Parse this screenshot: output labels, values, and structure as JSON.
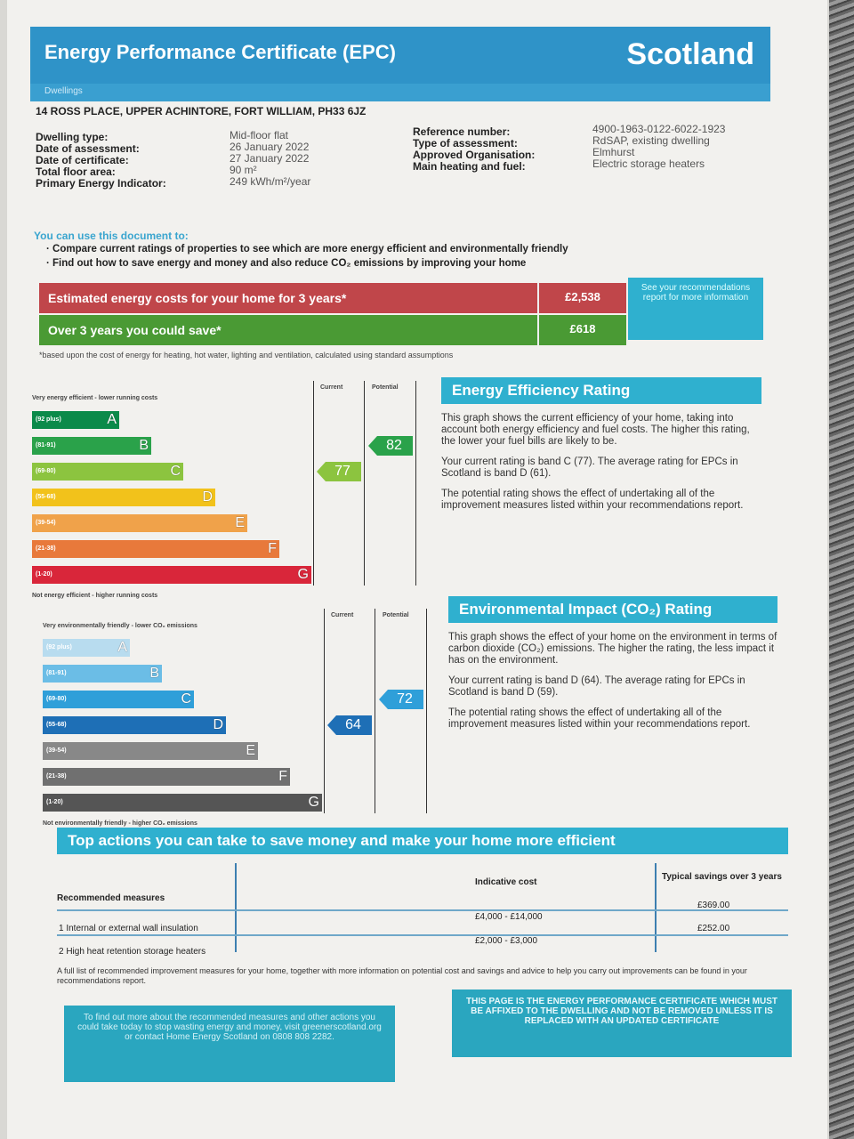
{
  "header": {
    "title": "Energy Performance Certificate (EPC)",
    "region": "Scotland",
    "subtitle": "Dwellings"
  },
  "address": "14 ROSS PLACE, UPPER ACHINTORE, FORT WILLIAM, PH33 6JZ",
  "details_left": [
    {
      "label": "Dwelling type:",
      "value": "Mid-floor flat"
    },
    {
      "label": "Date of assessment:",
      "value": "26 January 2022"
    },
    {
      "label": "Date of certificate:",
      "value": "27 January 2022"
    },
    {
      "label": "Total floor area:",
      "value": "90 m²"
    },
    {
      "label": "Primary Energy Indicator:",
      "value": "249 kWh/m²/year"
    }
  ],
  "details_right": [
    {
      "label": "Reference number:",
      "value": "4900-1963-0122-6022-1923"
    },
    {
      "label": "Type of assessment:",
      "value": "RdSAP, existing dwelling"
    },
    {
      "label": "Approved Organisation:",
      "value": "Elmhurst"
    },
    {
      "label": "Main heating and fuel:",
      "value": "Electric storage heaters"
    }
  ],
  "use_heading": "You can use this document to:",
  "use_bullets": [
    "Compare current ratings of properties to see which are more energy efficient and environmentally friendly",
    "Find out how to save energy and money and also reduce CO₂ emissions by improving your home"
  ],
  "costs": {
    "estimated_label": "Estimated energy costs for your home for 3 years*",
    "estimated_value": "£2,538",
    "save_label": "Over 3 years you could save*",
    "save_value": "£618",
    "see_rec": "See your recommendations report for more information",
    "footnote": "*based upon the cost of energy for heating, hot water, lighting and ventilation, calculated using standard assumptions"
  },
  "energy": {
    "top_note": "Very energy efficient - lower running costs",
    "bottom_note": "Not energy efficient - higher running costs",
    "col_current": "Current",
    "col_potential": "Potential",
    "current": 77,
    "potential": 82,
    "current_color": "#8cc43f",
    "potential_color": "#2aa24a",
    "bands": [
      {
        "letter": "A",
        "range": "(92 plus)",
        "color": "#0b8a4a"
      },
      {
        "letter": "B",
        "range": "(81-91)",
        "color": "#2aa24a"
      },
      {
        "letter": "C",
        "range": "(69-80)",
        "color": "#8cc43f"
      },
      {
        "letter": "D",
        "range": "(55-68)",
        "color": "#f2c21b"
      },
      {
        "letter": "E",
        "range": "(39-54)",
        "color": "#f0a24a"
      },
      {
        "letter": "F",
        "range": "(21-38)",
        "color": "#e8793b"
      },
      {
        "letter": "G",
        "range": "(1-20)",
        "color": "#d9263a"
      }
    ],
    "title": "Energy Efficiency Rating",
    "p1": "This graph shows the current efficiency of your home, taking into account both energy efficiency and fuel costs. The higher this rating, the lower your fuel bills are likely to be.",
    "p2": "Your current rating is band C (77). The average rating for EPCs in Scotland is band D (61).",
    "p3": "The potential rating shows the effect of undertaking all of the improvement measures listed within your recommendations report."
  },
  "environment": {
    "top_note": "Very environmentally friendly - lower CO₂ emissions",
    "bottom_note": "Not environmentally friendly - higher CO₂ emissions",
    "col_current": "Current",
    "col_potential": "Potential",
    "current": 64,
    "potential": 72,
    "current_color": "#1e6fb6",
    "potential_color": "#2f9fd9",
    "bands": [
      {
        "letter": "A",
        "range": "(92 plus)",
        "color": "#b8dcef"
      },
      {
        "letter": "B",
        "range": "(81-91)",
        "color": "#6bbde6"
      },
      {
        "letter": "C",
        "range": "(69-80)",
        "color": "#2f9fd9"
      },
      {
        "letter": "D",
        "range": "(55-68)",
        "color": "#1e6fb6"
      },
      {
        "letter": "E",
        "range": "(39-54)",
        "color": "#888888"
      },
      {
        "letter": "F",
        "range": "(21-38)",
        "color": "#707070"
      },
      {
        "letter": "G",
        "range": "(1-20)",
        "color": "#555555"
      }
    ],
    "title": "Environmental Impact (CO₂) Rating",
    "p1": "This graph shows the effect of your home on the environment in terms of carbon dioxide (CO₂) emissions. The higher the rating, the less impact it has on the environment.",
    "p2": "Your current rating is band D (64). The average rating for EPCs in Scotland is band D (59).",
    "p3": "The potential rating shows the effect of undertaking all of the improvement measures listed within your recommendations report."
  },
  "actions": {
    "title": "Top actions you can take to save money and make your home more efficient",
    "col_measures": "Recommended measures",
    "col_cost": "Indicative cost",
    "col_savings": "Typical savings over 3 years",
    "rows": [
      {
        "measure": "1 Internal or external wall insulation",
        "cost": "£4,000 - £14,000",
        "savings": "£369.00"
      },
      {
        "measure": "2 High heat retention storage heaters",
        "cost": "£2,000 - £3,000",
        "savings": "£252.00"
      }
    ],
    "note": "A full list of recommended improvement measures for your home, together with more information on potential cost and savings and advice to help you carry out improvements can be found in your recommendations report.",
    "box_left": "To find out more about the recommended measures and other actions you could take today to stop wasting energy and money, visit greenerscotland.org or contact Home Energy Scotland on 0808 808 2282.",
    "box_right": "THIS PAGE IS THE ENERGY PERFORMANCE CERTIFICATE WHICH MUST BE AFFIXED TO THE DWELLING AND NOT BE REMOVED UNLESS IT IS REPLACED WITH AN UPDATED CERTIFICATE"
  }
}
